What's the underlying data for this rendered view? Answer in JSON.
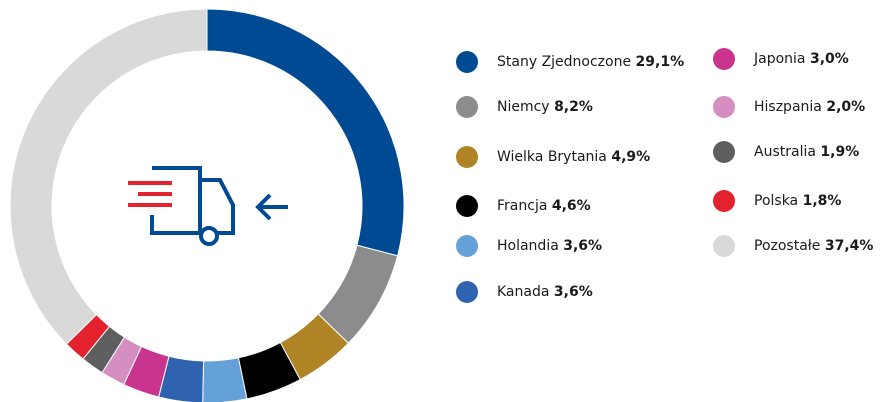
{
  "chart_data": {
    "type": "donut",
    "categories": [
      "Stany Zjednoczone",
      "Niemcy",
      "Wielka Brytania",
      "Francja",
      "Holandia",
      "Kanada",
      "Japonia",
      "Hiszpania",
      "Australia",
      "Polska",
      "Pozostałe"
    ],
    "values": [
      29.1,
      8.2,
      4.9,
      4.6,
      3.6,
      3.6,
      3.0,
      2.0,
      1.9,
      1.8,
      37.4
    ],
    "value_labels": [
      "29,1%",
      "8,2%",
      "4,9%",
      "4,6%",
      "3,6%",
      "3,6%",
      "3,0%",
      "2,0%",
      "1,9%",
      "1,8%",
      "37,4%"
    ],
    "colors": [
      "#004a93",
      "#8c8c8c",
      "#b08324",
      "#000000",
      "#63a1d8",
      "#2f63b0",
      "#c9348f",
      "#d48ec0",
      "#5f5f5f",
      "#e3222d",
      "#d9d9d9"
    ]
  }
}
